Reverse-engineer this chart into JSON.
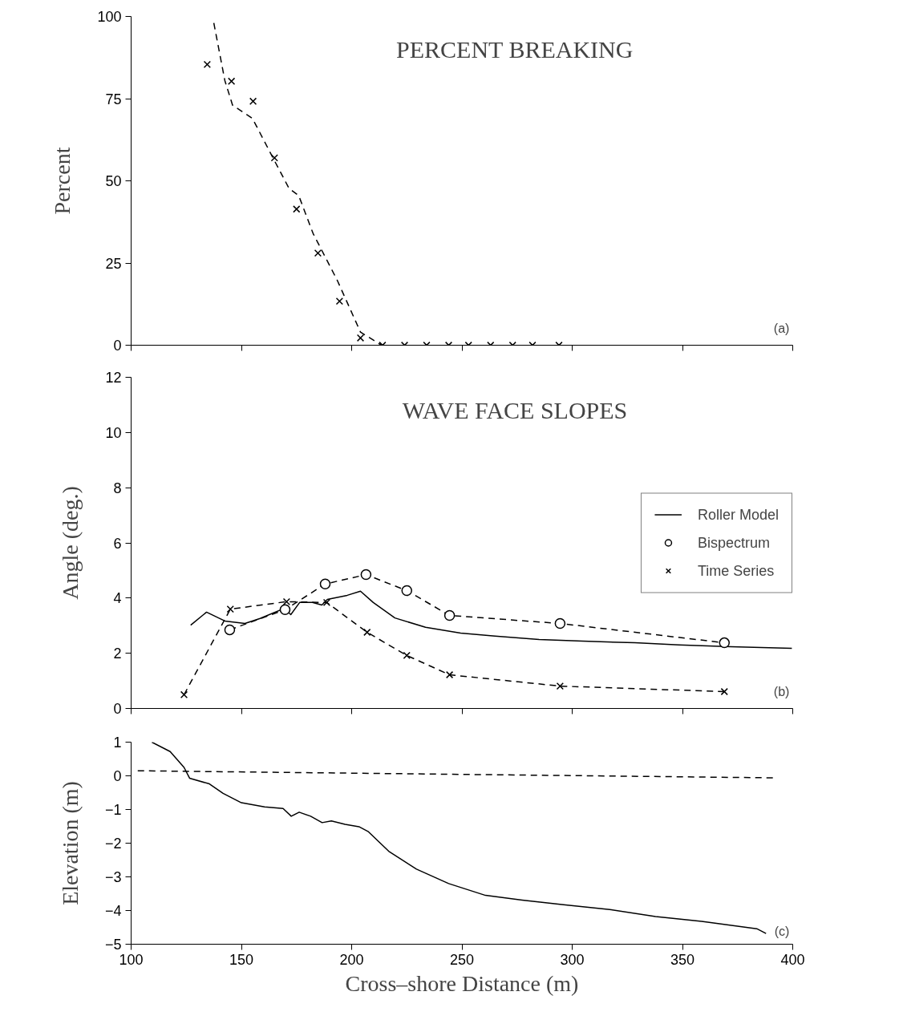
{
  "chart_data": [
    {
      "type": "line",
      "title": "PERCENT BREAKING",
      "ylabel": "Percent",
      "xlim": [
        100,
        400
      ],
      "ylim": [
        0,
        100
      ],
      "xticks": [
        100,
        150,
        200,
        250,
        300,
        350,
        400
      ],
      "yticks": [
        0,
        25,
        50,
        75,
        100
      ],
      "tick_labels": "y",
      "grid": false,
      "annotations": [
        "(a)"
      ],
      "series": [
        {
          "line_style": "dashed",
          "marker": "none",
          "color": "#000000",
          "x": [
            137.5,
            142.5,
            146,
            155,
            164,
            171.6,
            176,
            182.5,
            193.5,
            204,
            213.5
          ],
          "values": [
            98,
            80.5,
            73,
            69,
            57.4,
            47.7,
            45.5,
            34,
            19.7,
            4,
            0
          ]
        },
        {
          "type": "scatter",
          "marker": "cross",
          "color": "#000000",
          "x": [
            134.5,
            145.5,
            155.3,
            165,
            175,
            184.7,
            194.5,
            204,
            214,
            224,
            234,
            244,
            253,
            263,
            273,
            282,
            294
          ],
          "values": [
            85.4,
            80.3,
            74.2,
            57,
            41.4,
            28,
            13.4,
            2.2,
            0,
            0,
            0,
            0,
            0,
            0,
            0,
            0,
            0
          ]
        }
      ]
    },
    {
      "type": "line",
      "title": "WAVE FACE SLOPES",
      "ylabel": "Angle (deg.)",
      "xlim": [
        100,
        400
      ],
      "ylim": [
        0,
        12
      ],
      "xticks": [
        100,
        150,
        200,
        250,
        300,
        350,
        400
      ],
      "yticks": [
        0,
        2,
        4,
        6,
        8,
        10,
        12
      ],
      "tick_labels": "y",
      "grid": false,
      "legend": "right",
      "annotations": [
        "(b)"
      ],
      "series": [
        {
          "name": "Roller Model",
          "line_style": "solid",
          "marker": "none",
          "color": "#000000",
          "x": [
            127,
            134.2,
            142.5,
            151.6,
            158.5,
            169.5,
            172.4,
            176.4,
            182.2,
            186.5,
            189,
            198,
            204,
            209.8,
            219.6,
            233.5,
            249.4,
            265,
            285,
            304.7,
            328.4,
            348.4,
            372,
            399.6
          ],
          "values": [
            3.02,
            3.49,
            3.17,
            3.08,
            3.26,
            3.63,
            3.4,
            3.84,
            3.84,
            3.75,
            3.95,
            4.1,
            4.25,
            3.84,
            3.28,
            2.94,
            2.73,
            2.62,
            2.5,
            2.44,
            2.38,
            2.3,
            2.24,
            2.18
          ]
        },
        {
          "name": "Bispectrum",
          "line_style": "dashed",
          "marker": "circle",
          "color": "#000000",
          "x": [
            144.7,
            169.8,
            188,
            206.5,
            225,
            244.4,
            294.5,
            369
          ],
          "values": [
            2.85,
            3.58,
            4.51,
            4.85,
            4.27,
            3.37,
            3.08,
            2.38
          ]
        },
        {
          "name": "Time Series",
          "line_style": "dashed",
          "marker": "cross",
          "color": "#000000",
          "x": [
            124,
            145,
            170.5,
            188.7,
            207,
            225,
            244.4,
            294.5,
            369
          ],
          "values": [
            0.5,
            3.6,
            3.87,
            3.84,
            2.76,
            1.92,
            1.22,
            0.81,
            0.61
          ]
        }
      ]
    },
    {
      "type": "line",
      "ylabel": "Elevation (m)",
      "xlabel": "Cross–shore Distance (m)",
      "xlim": [
        100,
        400
      ],
      "ylim": [
        -5,
        1
      ],
      "xticks": [
        100,
        150,
        200,
        250,
        300,
        350,
        400
      ],
      "yticks": [
        -5,
        -4,
        -3,
        -2,
        -1,
        0,
        1
      ],
      "grid": false,
      "annotations": [
        "(c)"
      ],
      "series": [
        {
          "line_style": "solid",
          "marker": "none",
          "color": "#000000",
          "x": [
            109.4,
            117.7,
            124,
            126.5,
            135.5,
            141.7,
            150,
            160.5,
            168.9,
            172.6,
            176.2,
            181.4,
            186.6,
            190.8,
            197,
            203.3,
            207.4,
            216.8,
            229.4,
            244,
            260.7,
            277.3,
            296.1,
            317,
            337.8,
            358.7,
            383.7,
            387.9
          ],
          "values": [
            1,
            0.72,
            0.25,
            -0.07,
            -0.24,
            -0.52,
            -0.8,
            -0.92,
            -0.97,
            -1.2,
            -1.08,
            -1.2,
            -1.39,
            -1.34,
            -1.44,
            -1.51,
            -1.65,
            -2.24,
            -2.77,
            -3.2,
            -3.55,
            -3.69,
            -3.83,
            -3.97,
            -4.18,
            -4.32,
            -4.54,
            -4.68
          ]
        },
        {
          "line_style": "dashed",
          "marker": "none",
          "color": "#000000",
          "x": [
            103,
            391
          ],
          "values": [
            0.15,
            -0.06
          ]
        }
      ]
    }
  ]
}
